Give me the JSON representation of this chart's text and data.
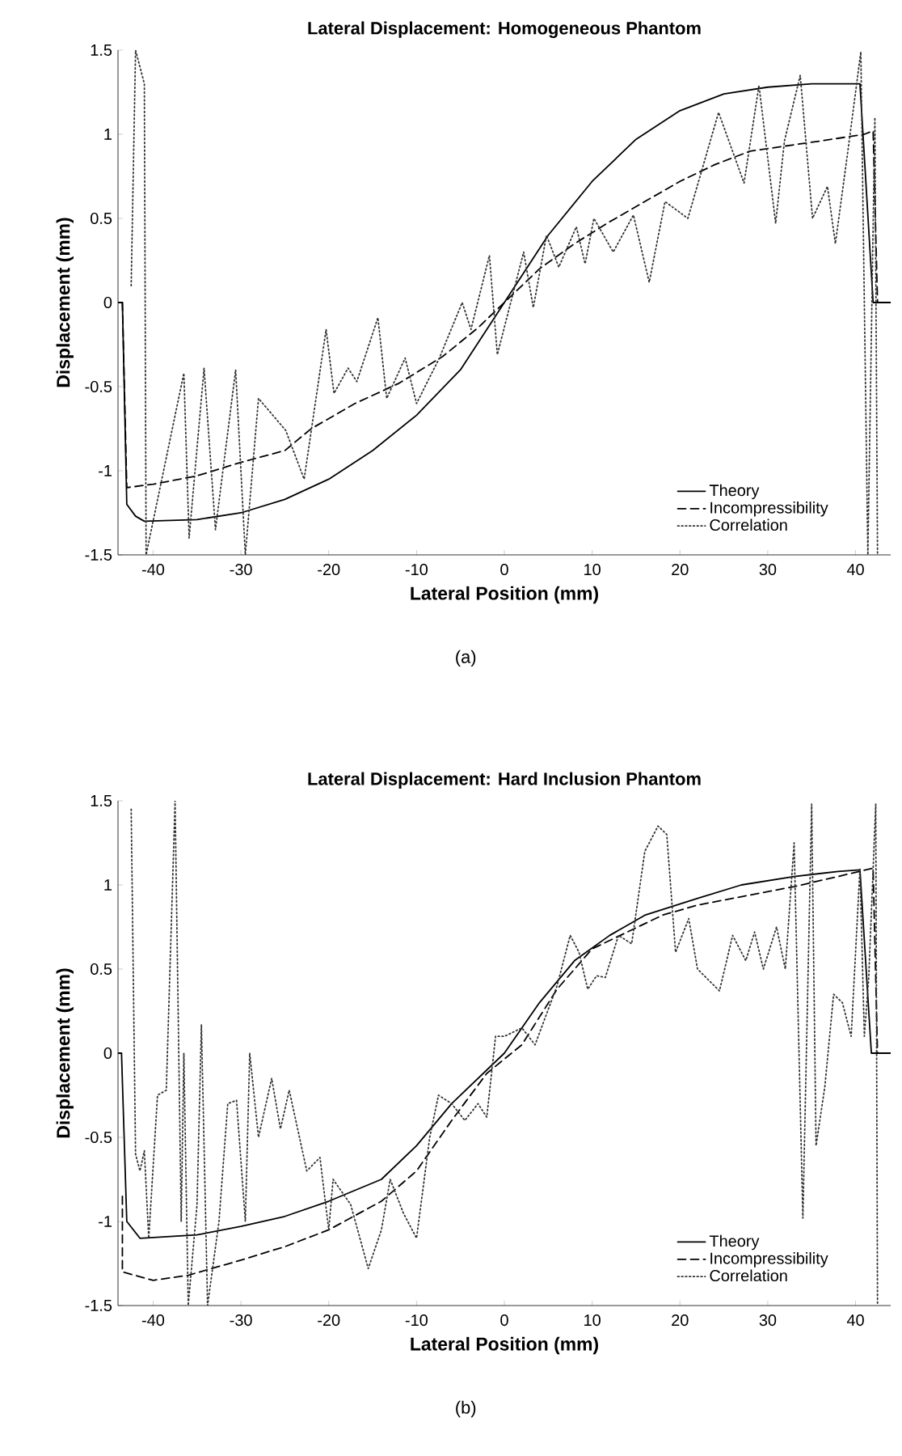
{
  "chart_data": [
    {
      "type": "line",
      "title": "Lateral Displacement: Homogeneous Phantom",
      "xlabel": "Lateral Position (mm)",
      "ylabel": "Displacement (mm)",
      "xlim": [
        -44,
        44
      ],
      "ylim": [
        -1.5,
        1.5
      ],
      "xticks": [
        -40,
        -30,
        -20,
        -10,
        0,
        10,
        20,
        30,
        40
      ],
      "yticks": [
        -1.5,
        -1,
        -0.5,
        0,
        0.5,
        1,
        1.5
      ],
      "legend": "bottom right",
      "annotations": [
        "(a)"
      ],
      "series": [
        {
          "name": "Theory",
          "color": "#000000",
          "line_style": "solid",
          "x": [
            -44,
            -43.5,
            -43,
            -42,
            -41,
            -35,
            -30,
            -25,
            -20,
            -15,
            -10,
            -5,
            0,
            5,
            10,
            15,
            20,
            25,
            30,
            35,
            40.5,
            42,
            44
          ],
          "values": [
            0,
            0,
            -1.2,
            -1.27,
            -1.3,
            -1.29,
            -1.25,
            -1.17,
            -1.05,
            -0.88,
            -0.67,
            -0.4,
            0,
            0.4,
            0.72,
            0.97,
            1.14,
            1.24,
            1.28,
            1.3,
            1.3,
            0,
            0
          ]
        },
        {
          "name": "Incompressibility",
          "color": "#000000",
          "line_style": "dashed",
          "x": [
            -43.5,
            -43,
            -40,
            -35,
            -30,
            -25,
            -22,
            -17,
            -12,
            -7,
            -3,
            0,
            4,
            8,
            12,
            16,
            20,
            24,
            28,
            32,
            36,
            41,
            42,
            42.5
          ],
          "values": [
            0,
            -1.1,
            -1.08,
            -1.03,
            -0.95,
            -0.88,
            -0.75,
            -0.6,
            -0.48,
            -0.32,
            -0.15,
            0,
            0.2,
            0.35,
            0.48,
            0.6,
            0.72,
            0.82,
            0.9,
            0.93,
            0.96,
            1.0,
            1.02,
            0
          ]
        },
        {
          "name": "Correlation",
          "color": "#333333",
          "line_style": "dotted",
          "x": [
            -42.5,
            -42,
            -41,
            -40.8,
            -36.5,
            -35.9,
            -34.2,
            -32.9,
            -30.6,
            -29.5,
            -28,
            -24.9,
            -22.8,
            -20.3,
            -19.4,
            -17.8,
            -16.8,
            -14.4,
            -13.4,
            -11.3,
            -10,
            -7.4,
            -4.8,
            -3.8,
            -1.7,
            -0.8,
            2.2,
            3.3,
            4.8,
            6.2,
            8.2,
            9.2,
            10.2,
            12.4,
            14.7,
            16.5,
            18.3,
            20.9,
            24.4,
            27.3,
            29,
            30.9,
            31.9,
            33.7,
            35.1,
            36.8,
            37.7,
            39.2,
            40.6,
            41.4,
            42.2,
            42.5
          ],
          "values": [
            0.1,
            1.5,
            1.3,
            -1.5,
            -0.42,
            -1.4,
            -0.39,
            -1.35,
            -0.4,
            -1.5,
            -0.57,
            -0.76,
            -1.05,
            -0.16,
            -0.54,
            -0.39,
            -0.47,
            -0.09,
            -0.57,
            -0.33,
            -0.6,
            -0.33,
            0,
            -0.16,
            0.28,
            -0.31,
            0.3,
            -0.03,
            0.4,
            0.21,
            0.45,
            0.23,
            0.5,
            0.3,
            0.52,
            0.12,
            0.6,
            0.5,
            1.13,
            0.71,
            1.29,
            0.47,
            0.96,
            1.35,
            0.5,
            0.69,
            0.35,
            0.93,
            1.49,
            -1.5,
            1.1,
            -1.5
          ]
        }
      ]
    },
    {
      "type": "line",
      "title": "Lateral Displacement: Hard Inclusion Phantom",
      "xlabel": "Lateral Position (mm)",
      "ylabel": "Displacement (mm)",
      "xlim": [
        -44,
        44
      ],
      "ylim": [
        -1.5,
        1.5
      ],
      "xticks": [
        -40,
        -30,
        -20,
        -10,
        0,
        10,
        20,
        30,
        40
      ],
      "yticks": [
        -1.5,
        -1,
        -0.5,
        0,
        0.5,
        1,
        1.5
      ],
      "legend": "bottom right",
      "annotations": [
        "(b)"
      ],
      "series": [
        {
          "name": "Theory",
          "color": "#000000",
          "line_style": "solid",
          "x": [
            -44,
            -43.6,
            -43,
            -41.5,
            -35,
            -30,
            -25,
            -20,
            -14,
            -10,
            -6,
            0,
            4,
            8,
            12,
            16,
            22,
            27,
            33,
            38,
            40.5,
            41.8,
            44
          ],
          "values": [
            0,
            0,
            -1.0,
            -1.1,
            -1.08,
            -1.03,
            -0.97,
            -0.88,
            -0.75,
            -0.55,
            -0.3,
            0,
            0.3,
            0.55,
            0.7,
            0.82,
            0.92,
            1.0,
            1.05,
            1.08,
            1.09,
            0,
            0
          ]
        },
        {
          "name": "Incompressibility",
          "color": "#000000",
          "line_style": "dashed",
          "x": [
            -43.5,
            -43.5,
            -40,
            -36,
            -30,
            -25,
            -20,
            -14,
            -10,
            -6,
            -2,
            2,
            6,
            10,
            14,
            18,
            22,
            27,
            33,
            38,
            42,
            42.5
          ],
          "values": [
            -0.85,
            -1.3,
            -1.35,
            -1.32,
            -1.23,
            -1.15,
            -1.05,
            -0.88,
            -0.7,
            -0.4,
            -0.12,
            0.05,
            0.38,
            0.62,
            0.72,
            0.82,
            0.88,
            0.93,
            0.99,
            1.05,
            1.1,
            0
          ]
        },
        {
          "name": "Correlation",
          "color": "#333333",
          "line_style": "dotted",
          "x": [
            -42.5,
            -42,
            -41.5,
            -41,
            -40.5,
            -39.5,
            -38.5,
            -37.5,
            -36.8,
            -36.5,
            -36,
            -35,
            -34.5,
            -33.8,
            -32.5,
            -31.5,
            -30.5,
            -29.5,
            -29,
            -28,
            -26.5,
            -25.5,
            -24.5,
            -22.5,
            -21,
            -20,
            -19.5,
            -17.5,
            -15.5,
            -14,
            -13,
            -11.5,
            -10,
            -8.5,
            -7.5,
            -6,
            -4.5,
            -3,
            -2,
            -1,
            0,
            2,
            3.5,
            6,
            7.5,
            8.5,
            9.5,
            10.5,
            11.5,
            13,
            14.5,
            16,
            17.5,
            18.5,
            19.5,
            21,
            22,
            24.5,
            26,
            27.5,
            28.5,
            29.5,
            31,
            32,
            33,
            34,
            35,
            35.5,
            36.5,
            37.5,
            38.5,
            39.5,
            40.5,
            41,
            41.5,
            42.3,
            42.5
          ],
          "values": [
            1.45,
            -0.6,
            -0.7,
            -0.58,
            -1.1,
            -0.25,
            -0.22,
            1.5,
            -1.0,
            0,
            -1.5,
            -0.9,
            0.17,
            -1.5,
            -1.0,
            -0.3,
            -0.28,
            -1.0,
            0,
            -0.5,
            -0.15,
            -0.45,
            -0.22,
            -0.7,
            -0.62,
            -1.05,
            -0.75,
            -0.9,
            -1.28,
            -1.05,
            -0.75,
            -0.95,
            -1.1,
            -0.5,
            -0.25,
            -0.3,
            -0.4,
            -0.3,
            -0.38,
            0.1,
            0.1,
            0.15,
            0.05,
            0.4,
            0.7,
            0.6,
            0.38,
            0.46,
            0.45,
            0.7,
            0.65,
            1.2,
            1.35,
            1.3,
            0.6,
            0.8,
            0.5,
            0.37,
            0.7,
            0.55,
            0.72,
            0.5,
            0.75,
            0.5,
            1.25,
            -0.98,
            1.48,
            -0.55,
            -0.2,
            0.35,
            0.3,
            0.1,
            1.1,
            0.1,
            0.45,
            1.48,
            -1.5
          ]
        }
      ]
    }
  ]
}
